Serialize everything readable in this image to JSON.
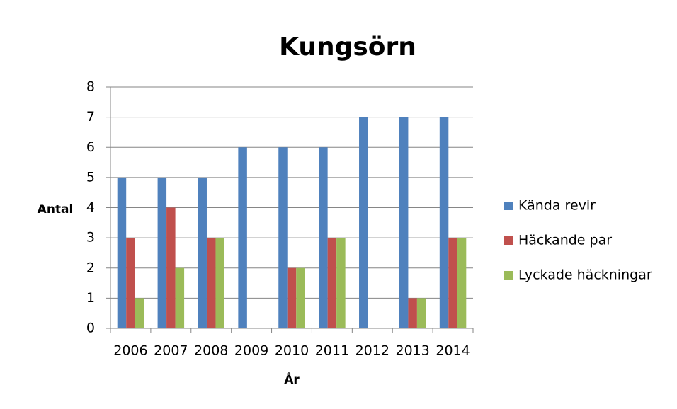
{
  "chart_data": {
    "type": "bar",
    "title": "Kungsörn",
    "categories": [
      "2006",
      "2007",
      "2008",
      "2009",
      "2010",
      "2011",
      "2012",
      "2013",
      "2014"
    ],
    "series": [
      {
        "name": "Kända revir",
        "color": "#4f81bd",
        "values": [
          5,
          5,
          5,
          6,
          6,
          6,
          7,
          7,
          7
        ]
      },
      {
        "name": "Häckande par",
        "color": "#c0504d",
        "values": [
          3,
          4,
          3,
          0,
          2,
          3,
          0,
          1,
          3
        ]
      },
      {
        "name": "Lyckade häckningar",
        "color": "#9bbb59",
        "values": [
          1,
          2,
          3,
          0,
          2,
          3,
          0,
          1,
          3
        ]
      }
    ],
    "xlabel": "År",
    "ylabel": "Antal",
    "ylim": [
      0,
      8
    ],
    "yticks": [
      0,
      1,
      2,
      3,
      4,
      5,
      6,
      7,
      8
    ],
    "grid": true,
    "legend": "right"
  }
}
